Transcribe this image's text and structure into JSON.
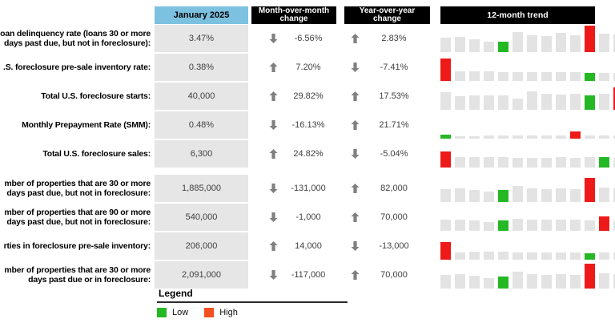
{
  "header": {
    "month_column": "January 2025",
    "mom_column": "Month-over-month\nchange",
    "yoy_column": "Year-over-year\nchange",
    "trend_column": "12-month trend"
  },
  "colors": {
    "month_header_bg": "#7dc1e0",
    "dark_header_bg": "#000000",
    "value_cell_bg": "#e6e6e6",
    "trend_bar_gray": "#e3e3e3",
    "low_green": "#25b825",
    "high_red_bar": "#ee1a1a",
    "legend_high_swatch": "#f2501e",
    "arrow_gray": "#7f7f7f"
  },
  "chart_data": {
    "type": "table",
    "columns": [
      "January 2025",
      "Month-over-month change",
      "Year-over-year change",
      "12-month trend"
    ],
    "trend_note": "13 monthly bars per sparkline, heights are relative px estimates; green bar = 12-month low, red bar = 12-month high; last bar clipped by screenshot edge",
    "rows": [
      {
        "label": "oan delinquency rate (loans 30 or more\ndays past due, but not in foreclosure):",
        "value": "3.47%",
        "mom": {
          "dir": "down",
          "text": "-6.56%"
        },
        "yoy": {
          "dir": "up",
          "text": "2.83%"
        },
        "trend_heights": [
          18,
          19,
          16,
          13,
          13,
          25,
          21,
          20,
          24,
          21,
          33,
          23,
          22
        ],
        "trend_colors": [
          "gray",
          "gray",
          "gray",
          "gray",
          "green",
          "gray",
          "gray",
          "gray",
          "gray",
          "gray",
          "red",
          "gray",
          "gray"
        ],
        "group_gap": false
      },
      {
        "label": ".S. foreclosure pre-sale inventory rate:",
        "value": "0.38%",
        "mom": {
          "dir": "up",
          "text": "7.20%"
        },
        "yoy": {
          "dir": "down",
          "text": "-7.41%"
        },
        "trend_heights": [
          28,
          12,
          12,
          12,
          11,
          11,
          11,
          11,
          11,
          11,
          10,
          10,
          10
        ],
        "trend_colors": [
          "red",
          "gray",
          "gray",
          "gray",
          "gray",
          "gray",
          "gray",
          "gray",
          "gray",
          "gray",
          "green",
          "gray",
          "gray"
        ],
        "group_gap": false
      },
      {
        "label": "Total U.S. foreclosure starts:",
        "value": "40,000",
        "mom": {
          "dir": "up",
          "text": "29.82%"
        },
        "yoy": {
          "dir": "up",
          "text": "17.53%"
        },
        "trend_heights": [
          22,
          17,
          18,
          18,
          18,
          14,
          23,
          20,
          19,
          20,
          18,
          20,
          28
        ],
        "trend_colors": [
          "gray",
          "gray",
          "gray",
          "gray",
          "gray",
          "gray",
          "gray",
          "gray",
          "gray",
          "gray",
          "green",
          "gray",
          "red"
        ],
        "group_gap": false
      },
      {
        "label": "Monthly Prepayment Rate (SMM):",
        "value": "0.48%",
        "mom": {
          "dir": "down",
          "text": "-16.13%"
        },
        "yoy": {
          "dir": "up",
          "text": "21.71%"
        },
        "trend_heights": [
          5,
          3,
          3,
          4,
          4,
          4,
          4,
          4,
          4,
          9,
          4,
          4,
          4
        ],
        "trend_colors": [
          "green",
          "gray",
          "gray",
          "gray",
          "gray",
          "gray",
          "gray",
          "gray",
          "gray",
          "red",
          "gray",
          "gray",
          "gray"
        ],
        "group_gap": false
      },
      {
        "label": "Total U.S. foreclosure sales:",
        "value": "6,300",
        "mom": {
          "dir": "up",
          "text": "24.82%"
        },
        "yoy": {
          "dir": "down",
          "text": "-5.04%"
        },
        "trend_heights": [
          20,
          13,
          13,
          13,
          13,
          12,
          12,
          12,
          13,
          12,
          13,
          13,
          12
        ],
        "trend_colors": [
          "red",
          "gray",
          "gray",
          "gray",
          "gray",
          "gray",
          "gray",
          "gray",
          "gray",
          "gray",
          "gray",
          "green",
          "gray"
        ],
        "group_gap": false
      },
      {
        "label": "mber of properties that are 30 or more\ndays past due, but not in foreclosure:",
        "value": "1,885,000",
        "mom": {
          "dir": "down",
          "text": "-131,000"
        },
        "yoy": {
          "dir": "up",
          "text": "82,000"
        },
        "trend_heights": [
          16,
          17,
          15,
          13,
          15,
          20,
          17,
          16,
          17,
          16,
          30,
          18,
          17
        ],
        "trend_colors": [
          "gray",
          "gray",
          "gray",
          "gray",
          "green",
          "gray",
          "gray",
          "gray",
          "gray",
          "gray",
          "red",
          "gray",
          "gray"
        ],
        "group_gap": true
      },
      {
        "label": "mber of properties that are 90 or more\ndays past due, but not in foreclosure:",
        "value": "540,000",
        "mom": {
          "dir": "down",
          "text": "-1,000"
        },
        "yoy": {
          "dir": "up",
          "text": "70,000"
        },
        "trend_heights": [
          14,
          14,
          13,
          11,
          13,
          15,
          14,
          14,
          14,
          14,
          13,
          18,
          13
        ],
        "trend_colors": [
          "gray",
          "gray",
          "gray",
          "gray",
          "green",
          "gray",
          "gray",
          "gray",
          "gray",
          "gray",
          "gray",
          "red",
          "gray"
        ],
        "group_gap": false
      },
      {
        "label": "rties in foreclosure pre-sale inventory:",
        "value": "206,000",
        "mom": {
          "dir": "up",
          "text": "14,000"
        },
        "yoy": {
          "dir": "down",
          "text": "-13,000"
        },
        "trend_heights": [
          22,
          9,
          10,
          10,
          10,
          9,
          9,
          9,
          9,
          9,
          8,
          9,
          9
        ],
        "trend_colors": [
          "red",
          "gray",
          "gray",
          "gray",
          "gray",
          "gray",
          "gray",
          "gray",
          "gray",
          "gray",
          "green",
          "gray",
          "gray"
        ],
        "group_gap": false
      },
      {
        "label": "mber of properties that are 30 or more\ndays past due or in foreclosure:",
        "value": "2,091,000",
        "mom": {
          "dir": "down",
          "text": "-117,000"
        },
        "yoy": {
          "dir": "up",
          "text": "70,000"
        },
        "trend_heights": [
          17,
          18,
          16,
          13,
          15,
          21,
          18,
          17,
          18,
          17,
          31,
          19,
          18
        ],
        "trend_colors": [
          "gray",
          "gray",
          "gray",
          "gray",
          "green",
          "gray",
          "gray",
          "gray",
          "gray",
          "gray",
          "red",
          "gray",
          "gray"
        ],
        "group_gap": false
      }
    ]
  },
  "legend": {
    "title": "Legend",
    "low_label": "Low",
    "high_label": "High"
  }
}
